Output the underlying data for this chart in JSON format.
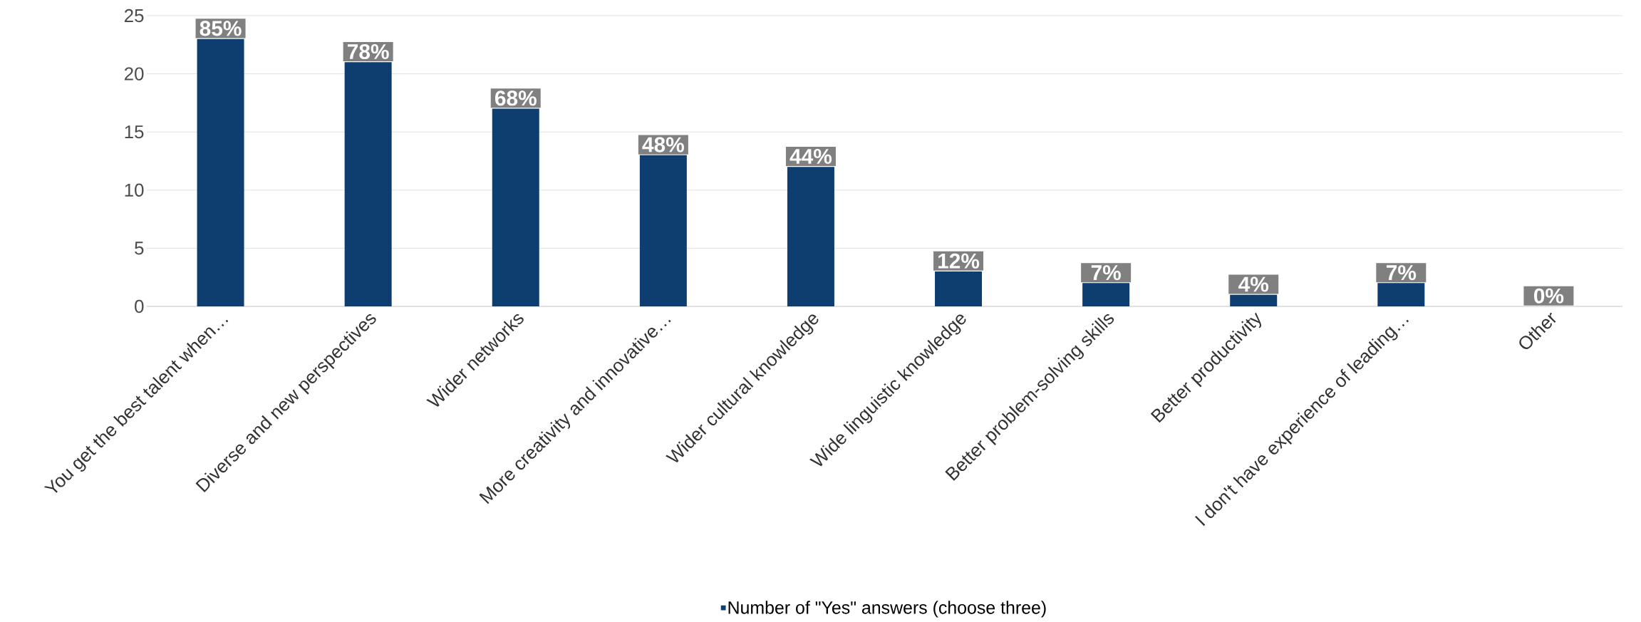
{
  "chart_data": {
    "type": "bar",
    "categories": [
      "You get the best talent when…",
      "Diverse and new perspectives",
      "Wider networks",
      "More creativity and innovative…",
      "Wider cultural knowledge",
      "Wide linguistic knowledge",
      "Better problem-solving skills",
      "Better productivity",
      "I don't have experience of leading…",
      "Other"
    ],
    "series": [
      {
        "name": "Number of \"Yes\" answers (choose three)",
        "color": "#0e3e6f",
        "values": [
          23,
          21,
          17,
          13,
          12,
          3,
          2,
          1,
          2,
          0
        ]
      }
    ],
    "annotations": [
      {
        "text": "85%",
        "x": "You get the best talent when…",
        "y": 23
      },
      {
        "text": "78%",
        "x": "Diverse and new perspectives",
        "y": 21
      },
      {
        "text": "68%",
        "x": "Wider networks",
        "y": 17
      },
      {
        "text": "48%",
        "x": "More creativity and innovative…",
        "y": 13
      },
      {
        "text": "44%",
        "x": "Wider cultural knowledge",
        "y": 12
      },
      {
        "text": "12%",
        "x": "Wide linguistic knowledge",
        "y": 3
      },
      {
        "text": "7%",
        "x": "Better problem-solving skills",
        "y": 2
      },
      {
        "text": "4%",
        "x": "Better productivity",
        "y": 1
      },
      {
        "text": "7%",
        "x": "I don't have experience of leading…",
        "y": 2
      },
      {
        "text": "0%",
        "x": "Other",
        "y": 0
      }
    ],
    "ylim": [
      0,
      25
    ],
    "yticks": [
      0,
      5,
      10,
      15,
      20,
      25
    ],
    "grid": "y",
    "legend": "bottom"
  }
}
